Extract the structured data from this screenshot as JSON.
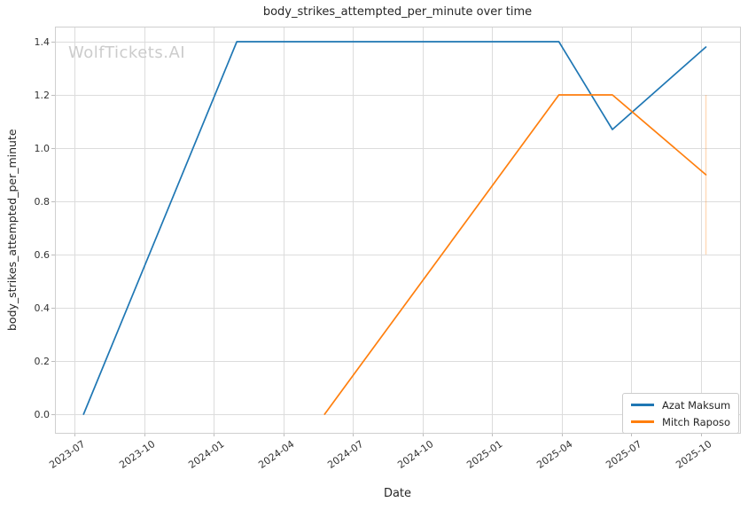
{
  "watermark": "WolfTickets.AI",
  "colors": {
    "grid": "#dcdcdc",
    "spine": "#cfcfcf",
    "tick_mark": "#bdbdbd",
    "background": "#ffffff",
    "series_blue": "#1f77b4",
    "series_orange": "#ff7f0e"
  },
  "chart_data": {
    "type": "line",
    "title": "body_strikes_attempted_per_minute over time",
    "xlabel": "Date",
    "ylabel": "body_strikes_attempted_per_minute",
    "x_ticks": [
      "2023-07",
      "2023-10",
      "2024-01",
      "2024-04",
      "2024-07",
      "2024-10",
      "2025-01",
      "2025-04",
      "2025-07",
      "2025-10"
    ],
    "y_ticks": [
      0.0,
      0.2,
      0.4,
      0.6,
      0.8,
      1.0,
      1.2,
      1.4
    ],
    "ylim": [
      -0.07,
      1.457
    ],
    "grid": true,
    "legend_position": "lower right",
    "series": [
      {
        "name": "Azat Maksum",
        "color": "#1f77b4",
        "points": [
          [
            "2023-07-13",
            0.0
          ],
          [
            "2024-02-01",
            1.4
          ],
          [
            "2025-03-28",
            1.4
          ],
          [
            "2025-06-07",
            1.07
          ],
          [
            "2025-10-08",
            1.38
          ]
        ]
      },
      {
        "name": "Mitch Raposo",
        "color": "#ff7f0e",
        "points": [
          [
            "2024-05-25",
            0.0
          ],
          [
            "2025-03-28",
            1.2
          ],
          [
            "2025-06-07",
            1.2
          ],
          [
            "2025-10-08",
            0.9
          ]
        ],
        "error_bar": {
          "date": "2025-10-08",
          "low": 0.6,
          "high": 1.2
        }
      }
    ]
  }
}
